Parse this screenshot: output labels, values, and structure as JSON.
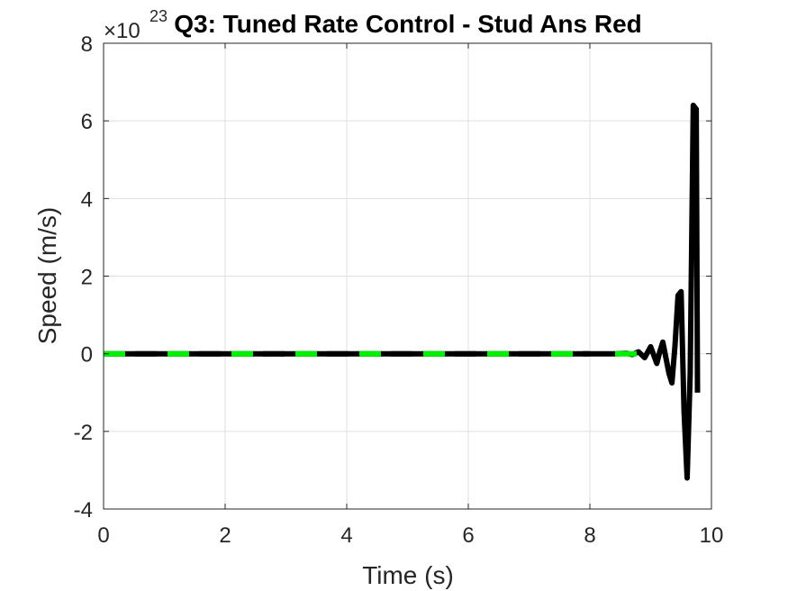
{
  "chart_data": {
    "type": "line",
    "title": "Q3: Tuned Rate Control - Stud Ans Red",
    "xlabel": "Time (s)",
    "ylabel": "Speed (m/s)",
    "exponent_label": "×10",
    "exponent_power": "23",
    "xlim": [
      0,
      10
    ],
    "ylim": [
      -4,
      8
    ],
    "xticks": [
      "0",
      "2",
      "4",
      "6",
      "8",
      "10"
    ],
    "yticks": [
      "-4",
      "-2",
      "0",
      "2",
      "4",
      "6",
      "8"
    ],
    "grid": true,
    "series": [
      {
        "style": "solid",
        "color": "#000000",
        "x": [
          0,
          8.4,
          8.6,
          8.7,
          8.8,
          8.9,
          9.0,
          9.1,
          9.15,
          9.2,
          9.25,
          9.3,
          9.35,
          9.4,
          9.45,
          9.5,
          9.55,
          9.6,
          9.65,
          9.7,
          9.75,
          9.77
        ],
        "y": [
          0,
          0,
          0.01,
          -0.02,
          0.05,
          -0.1,
          0.18,
          -0.25,
          0.05,
          0.3,
          -0.1,
          -0.5,
          -0.75,
          0.2,
          1.5,
          1.6,
          -1.5,
          -3.2,
          -0.5,
          6.4,
          6.3,
          -1.0
        ]
      },
      {
        "style": "dashed",
        "color": "#00ee00",
        "x": [
          0,
          9.45
        ],
        "y": [
          0,
          0
        ]
      },
      {
        "style": "dashed",
        "color": "#000000",
        "x": [
          0,
          8.0
        ],
        "y": [
          0,
          0
        ]
      }
    ]
  }
}
